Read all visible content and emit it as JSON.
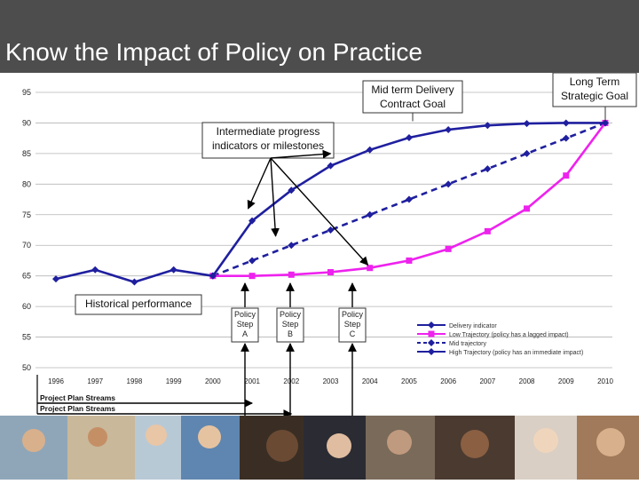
{
  "slide": {
    "title": "Know the Impact of Policy on Practice"
  },
  "colors": {
    "title_bar": "#4d4d4d",
    "delivery": "#1f1f9f",
    "low": "#ee22ee",
    "mid": "#1f1f9f",
    "high": "#1f1f9f"
  },
  "callouts": {
    "mid_term_line1": "Mid term Delivery",
    "mid_term_line2": "Contract Goal",
    "long_term_line1": "Long Term",
    "long_term_line2": "Strategic Goal",
    "intermediate_line1": "Intermediate progress",
    "intermediate_line2": "indicators or milestones",
    "historical": "Historical performance"
  },
  "policy_steps": [
    {
      "line1": "Policy",
      "line2": "Step",
      "line3": "A",
      "year": 2001
    },
    {
      "line1": "Policy",
      "line2": "Step",
      "line3": "B",
      "year": 2002
    },
    {
      "line1": "Policy",
      "line2": "Step",
      "line3": "C",
      "year": 2003.6
    }
  ],
  "streams": [
    {
      "label": "Project Plan Streams",
      "year": 2001
    },
    {
      "label": "Project Plan Streams",
      "year": 2002
    }
  ],
  "chart_data": {
    "type": "line",
    "x": [
      1996,
      1997,
      1998,
      1999,
      2000,
      2001,
      2002,
      2003,
      2004,
      2005,
      2006,
      2007,
      2008,
      2009,
      2010
    ],
    "xticks": [
      "1996",
      "1997",
      "1998",
      "1999",
      "2000",
      "2001",
      "2002",
      "2003",
      "2004",
      "2005",
      "2006",
      "2007",
      "2008",
      "2009",
      "2010"
    ],
    "yticks": [
      "50",
      "55",
      "60",
      "65",
      "70",
      "75",
      "80",
      "85",
      "90",
      "95"
    ],
    "ylim": [
      50,
      95
    ],
    "series": [
      {
        "name": "Delivery indicator",
        "style": "solid-diamond",
        "x": [
          1996,
          1997,
          1998,
          1999,
          2000
        ],
        "values": [
          64.5,
          66.0,
          64.0,
          66.0,
          65.0
        ]
      },
      {
        "name": "Low Trajectory (policy has a lagged impact)",
        "style": "solid-square",
        "x": [
          2000,
          2001,
          2002,
          2003,
          2004,
          2005,
          2006,
          2007,
          2008,
          2009,
          2010
        ],
        "values": [
          65.0,
          65.0,
          65.2,
          65.6,
          66.3,
          67.5,
          69.4,
          72.3,
          76.0,
          81.4,
          90.0
        ]
      },
      {
        "name": "Mid trajectory",
        "style": "dashed-diamond",
        "x": [
          2000,
          2001,
          2002,
          2003,
          2004,
          2005,
          2006,
          2007,
          2008,
          2009,
          2010
        ],
        "values": [
          65.0,
          67.5,
          70.0,
          72.5,
          75.0,
          77.5,
          80.0,
          82.5,
          85.0,
          87.5,
          90.0
        ]
      },
      {
        "name": "High Trajectory (policy has an immediate impact)",
        "style": "solid-diamond",
        "x": [
          2000,
          2001,
          2002,
          2003,
          2004,
          2005,
          2006,
          2007,
          2008,
          2009,
          2010
        ],
        "values": [
          65.0,
          74.0,
          79.0,
          83.0,
          85.6,
          87.6,
          88.9,
          89.6,
          89.9,
          90.0,
          90.0
        ]
      }
    ],
    "legend_position": "bottom-right"
  }
}
